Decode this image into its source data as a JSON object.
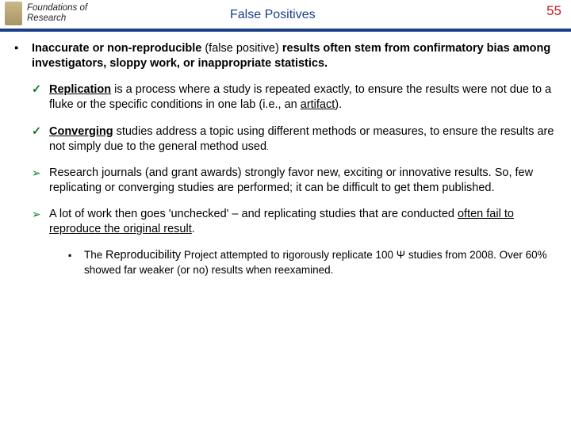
{
  "header": {
    "courseLine1": "Foundations of",
    "courseLine2": "Research",
    "title": "False Positives",
    "pageNumber": "55"
  },
  "colors": {
    "ruleColor": "#1a3e8a",
    "titleColor": "#1a3e8a",
    "pageNumColor": "#c02020",
    "checkColor": "#0a7a2a"
  },
  "bullets": {
    "main": {
      "pre": "Inaccurate or non-reproducible ",
      "paren": "(false positive)",
      "post": " results often stem from confirmatory bias among investigators, sloppy work, or inappropriate statistics."
    },
    "replication": {
      "strong": "Replication",
      "rest": " is a process where a study is repeated exactly, to ensure the results were not due to a fluke or the specific conditions in one lab (i.e., an ",
      "artifact": "artifact",
      "end": ")."
    },
    "converging": {
      "strong": "Converging",
      "rest": " studies address a topic using different methods or measures, to ensure the results are not simply due to the general method used",
      "end": "."
    },
    "journals": "Research journals (and grant awards) strongly favor new, exciting or innovative results.  So, few replicating or converging studies are performed; it can be difficult to get them published.",
    "unchecked": {
      "pre": "A lot of work then goes 'unchecked' – and replicating studies that are conducted ",
      "underlined": "often fail to reproduce the original result",
      "end": "."
    },
    "reproducibility": {
      "pre": "The ",
      "project": "Reproducibility",
      "mid": " Project attempted to rigorously replicate 100 ",
      "psi": "Ψ",
      "post": " studies from 2008.  Over 60% showed far weaker (or no) results when reexamined."
    }
  },
  "marks": {
    "square": "▪",
    "check": "✓",
    "arrow": "➢"
  }
}
